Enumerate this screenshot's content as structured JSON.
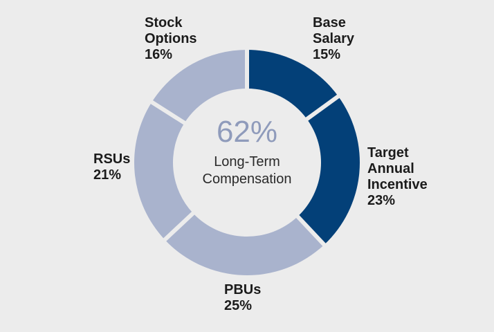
{
  "chart_data": {
    "type": "pie",
    "title": "",
    "center_value": "62%",
    "center_caption_lines": [
      "Long-Term",
      "Compensation"
    ],
    "slices": [
      {
        "name": "Base Salary",
        "label_lines": [
          "Base",
          "Salary"
        ],
        "value": 15,
        "value_label": "15%",
        "color": "#034078"
      },
      {
        "name": "Target Annual Incentive",
        "label_lines": [
          "Target",
          "Annual",
          "Incentive"
        ],
        "value": 23,
        "value_label": "23%",
        "color": "#034078"
      },
      {
        "name": "PBUs",
        "label_lines": [
          "PBUs"
        ],
        "value": 25,
        "value_label": "25%",
        "color": "#a9b3cd"
      },
      {
        "name": "RSUs",
        "label_lines": [
          "RSUs"
        ],
        "value": 21,
        "value_label": "21%",
        "color": "#a9b3cd"
      },
      {
        "name": "Stock Options",
        "label_lines": [
          "Stock",
          "Options"
        ],
        "value": 16,
        "value_label": "16%",
        "color": "#a9b3cd"
      }
    ],
    "colors": {
      "background": "#ececec",
      "short_term": "#034078",
      "long_term": "#a9b3cd",
      "center_value": "#8f9bbb"
    }
  }
}
